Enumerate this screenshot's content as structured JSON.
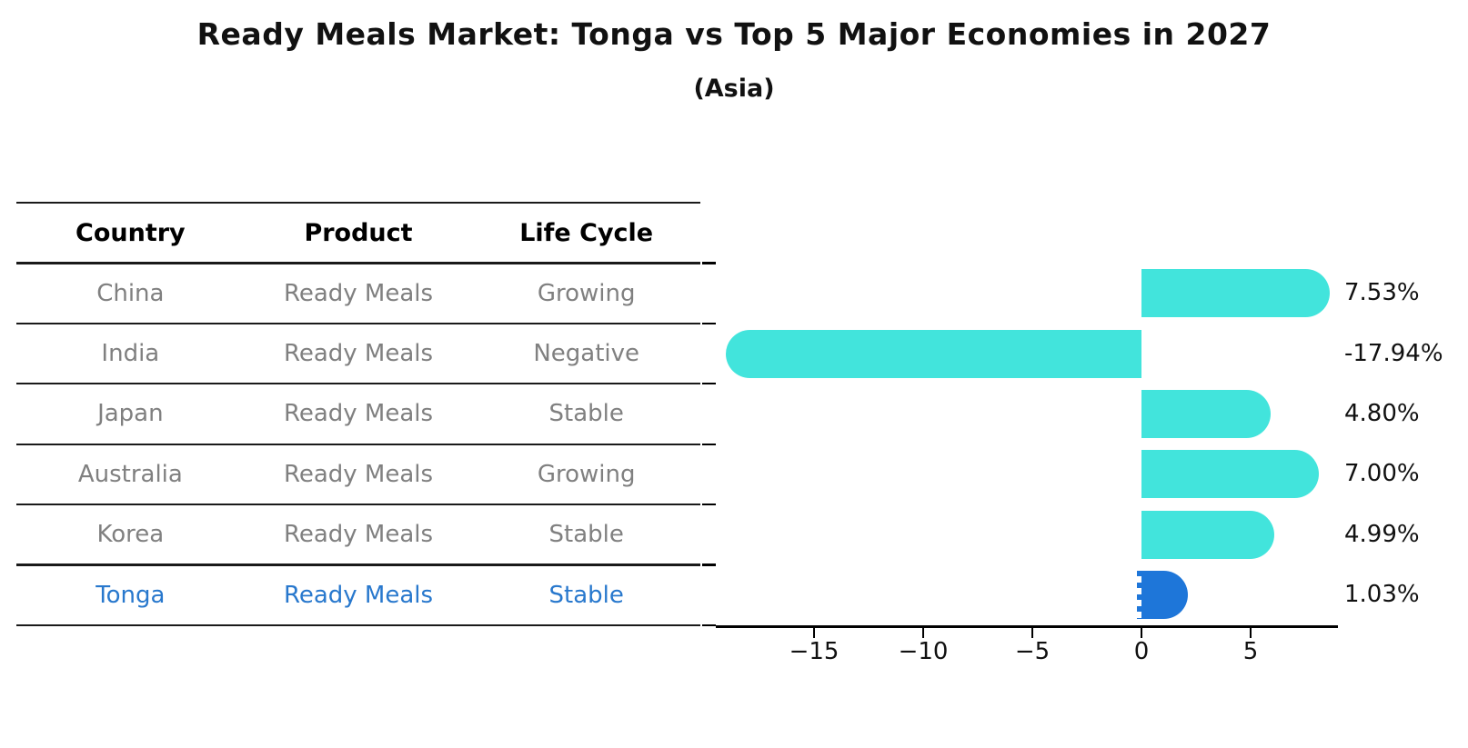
{
  "title": "Ready Meals Market: Tonga vs Top 5 Major Economies in 2027",
  "subtitle": "(Asia)",
  "colors": {
    "bar_cyan": "#42e4dc",
    "bar_blue": "#1e76d9",
    "highlight_text": "#2878cd",
    "cell_text": "#808080",
    "header_text": "#000000",
    "axis": "#000000"
  },
  "table": {
    "headers": [
      "Country",
      "Product",
      "Life Cycle"
    ],
    "rows": [
      {
        "country": "China",
        "product": "Ready Meals",
        "life_cycle": "Growing",
        "highlight": false
      },
      {
        "country": "India",
        "product": "Ready Meals",
        "life_cycle": "Negative",
        "highlight": false
      },
      {
        "country": "Japan",
        "product": "Ready Meals",
        "life_cycle": "Stable",
        "highlight": false
      },
      {
        "country": "Australia",
        "product": "Ready Meals",
        "life_cycle": "Growing",
        "highlight": false
      },
      {
        "country": "Korea",
        "product": "Ready Meals",
        "life_cycle": "Stable",
        "highlight": false
      },
      {
        "country": "Tonga",
        "product": "Ready Meals",
        "life_cycle": "Stable",
        "highlight": true
      }
    ]
  },
  "chart_data": {
    "type": "bar",
    "orientation": "horizontal",
    "title": "Ready Meals Market: Tonga vs Top 5 Major Economies in 2027",
    "subtitle": "(Asia)",
    "categories": [
      "China",
      "India",
      "Japan",
      "Australia",
      "Korea",
      "Tonga"
    ],
    "values": [
      7.53,
      -17.94,
      4.8,
      7.0,
      4.99,
      1.03
    ],
    "value_labels": [
      "7.53%",
      "-17.94%",
      "4.80%",
      "7.00%",
      "4.99%",
      "1.03%"
    ],
    "highlight_index": 5,
    "x_ticks": [
      -15,
      -10,
      -5,
      0,
      5
    ],
    "x_tick_labels": [
      "−15",
      "−10",
      "−5",
      "0",
      "5"
    ],
    "xlim": [
      -19.5,
      9.0
    ],
    "grid": false,
    "legend": false,
    "units": "percent"
  }
}
